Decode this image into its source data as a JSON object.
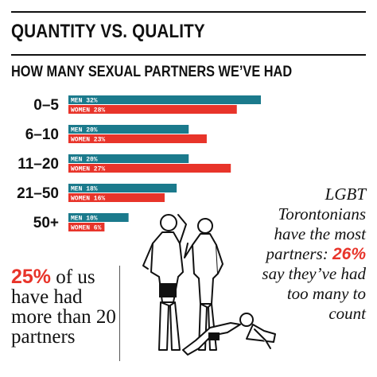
{
  "header": {
    "title": "QUANTITY VS. QUALITY",
    "subtitle": "HOW MANY SEXUAL PARTNERS WE’VE HAD"
  },
  "chart_data": {
    "type": "bar",
    "orientation": "horizontal",
    "title": "HOW MANY SEXUAL PARTNERS WE’VE HAD",
    "categories": [
      "0–5",
      "6–10",
      "11–20",
      "21–50",
      "50+"
    ],
    "series": [
      {
        "name": "MEN",
        "color": "#1b7a8c",
        "values": [
          32,
          20,
          20,
          18,
          10
        ]
      },
      {
        "name": "WOMEN",
        "color": "#e8342a",
        "values": [
          28,
          23,
          27,
          16,
          6
        ]
      }
    ],
    "value_format": "{name} {value}%",
    "xlim": [
      0,
      32
    ],
    "grid": false,
    "legend": "none"
  },
  "callout_left": {
    "highlight": "25%",
    "text": " of us have had more than 20 partners"
  },
  "callout_right": {
    "text_before": "LGBT Torontonians have the most partners: ",
    "highlight": "26%",
    "text_after": " say they’ve had too many to count"
  },
  "colors": {
    "men": "#1b7a8c",
    "women": "#e8342a"
  }
}
